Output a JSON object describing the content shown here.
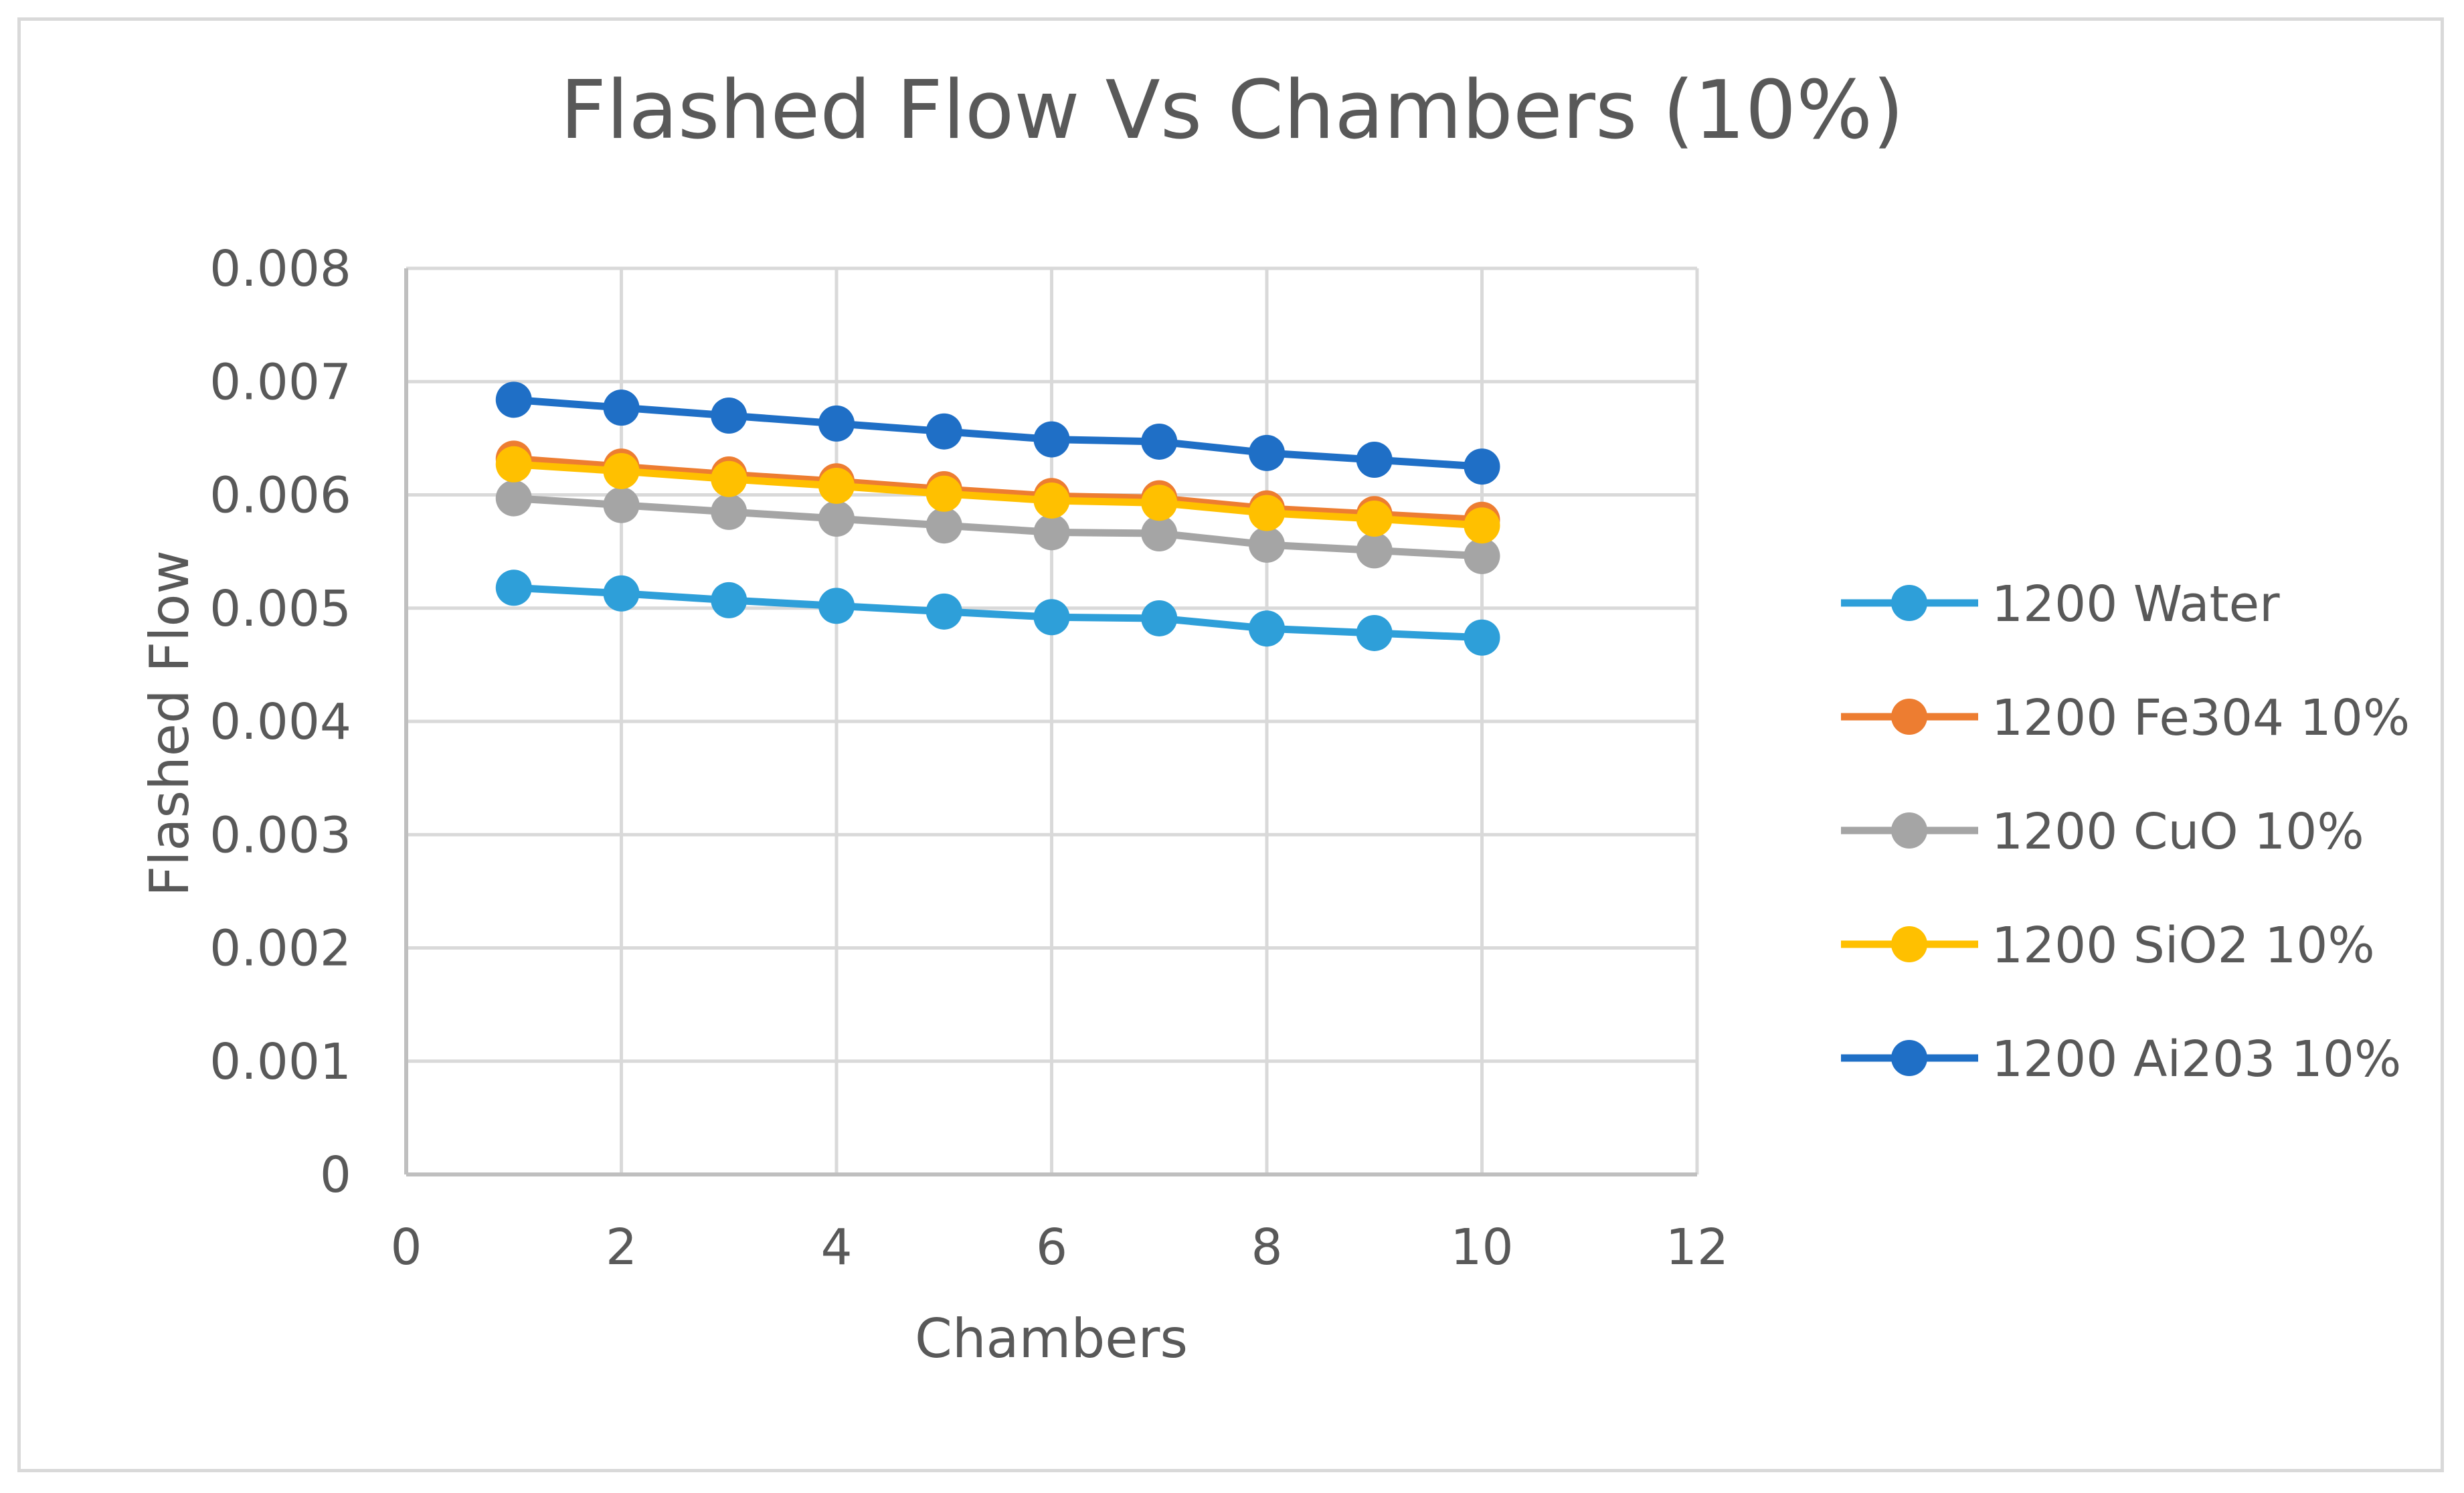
{
  "chart_data": {
    "type": "line",
    "title": "Flashed Flow Vs Chambers (10%)",
    "xlabel": "Chambers",
    "ylabel": "Flashed Flow",
    "xlim": [
      0,
      12
    ],
    "ylim": [
      0,
      0.008
    ],
    "x_ticks": [
      0,
      2,
      4,
      6,
      8,
      10,
      12
    ],
    "y_ticks": [
      0,
      0.001,
      0.002,
      0.003,
      0.004,
      0.005,
      0.006,
      0.007,
      0.008
    ],
    "x_tick_labels": [
      "0",
      "2",
      "4",
      "6",
      "8",
      "10",
      "12"
    ],
    "y_tick_labels": [
      "0",
      "0.001",
      "0.002",
      "0.003",
      "0.004",
      "0.005",
      "0.006",
      "0.007",
      "0.008"
    ],
    "grid": true,
    "legend_position": "right",
    "x": [
      1,
      2,
      3,
      4,
      5,
      6,
      7,
      8,
      9,
      10
    ],
    "series": [
      {
        "name": "1200 Water",
        "color": "#2e9fd9",
        "values": [
          0.00518,
          0.00513,
          0.00507,
          0.00502,
          0.00497,
          0.00492,
          0.00491,
          0.00482,
          0.00478,
          0.00474
        ]
      },
      {
        "name": "1200 Fe304 10%",
        "color": "#ed7d31",
        "values": [
          0.00632,
          0.00625,
          0.00618,
          0.00612,
          0.00605,
          0.00599,
          0.00597,
          0.00588,
          0.00583,
          0.00578
        ]
      },
      {
        "name": "1200 CuO 10%",
        "color": "#a5a5a5",
        "values": [
          0.00597,
          0.00591,
          0.00585,
          0.00579,
          0.00573,
          0.00567,
          0.00566,
          0.00556,
          0.00551,
          0.00546
        ]
      },
      {
        "name": "1200 SiO2 10%",
        "color": "#ffc000",
        "values": [
          0.00627,
          0.00621,
          0.00614,
          0.00608,
          0.00601,
          0.00595,
          0.00593,
          0.00584,
          0.00579,
          0.00573
        ]
      },
      {
        "name": "1200 Ai203 10%",
        "color": "#1f6fc6",
        "values": [
          0.00684,
          0.00677,
          0.0067,
          0.00663,
          0.00656,
          0.00649,
          0.00647,
          0.00637,
          0.00631,
          0.00625
        ]
      }
    ]
  },
  "colors": {
    "grid": "#d9d9d9",
    "axis": "#bfbfbf",
    "text": "#595959"
  }
}
